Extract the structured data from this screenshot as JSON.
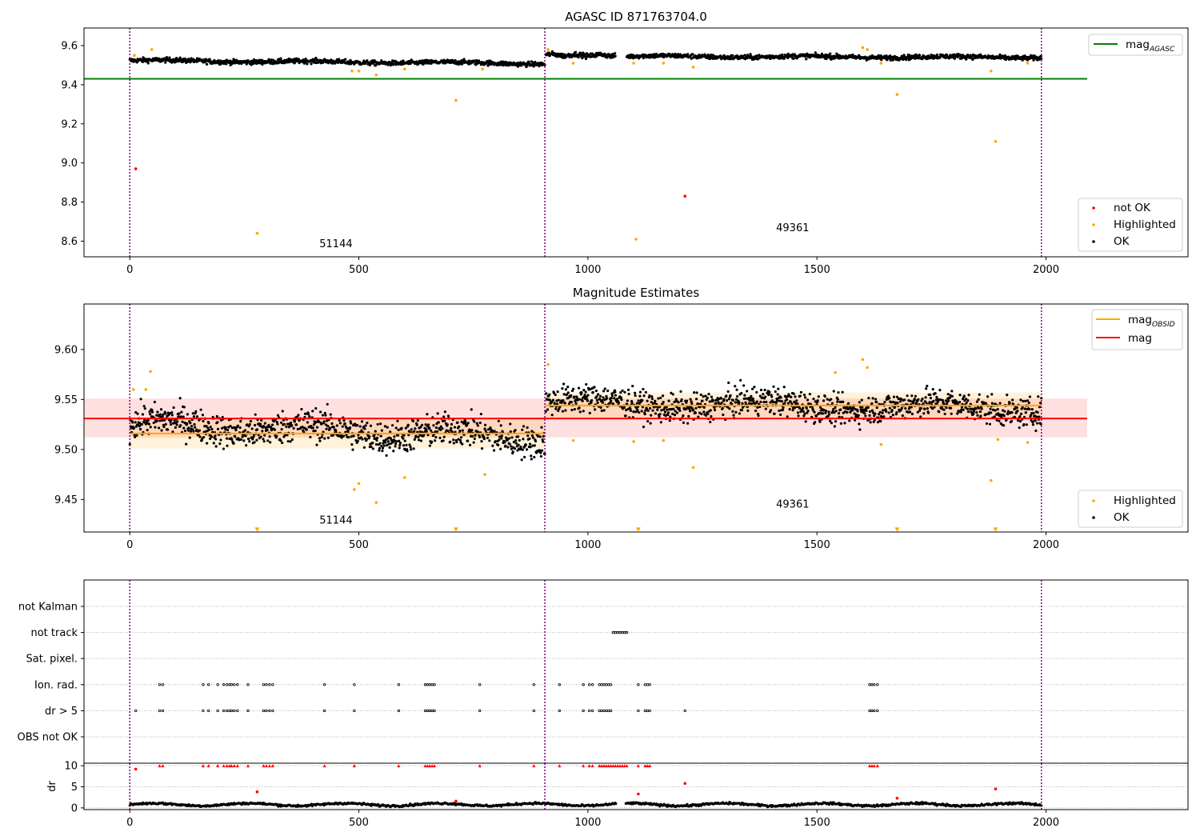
{
  "chart_data": [
    {
      "type": "scatter",
      "title": "AGASC ID 871763704.0",
      "xlim": [
        -100,
        2310
      ],
      "ylim": [
        8.52,
        9.69
      ],
      "xticks": [
        0,
        500,
        1000,
        1500,
        2000
      ],
      "yticks": [
        8.6,
        8.8,
        9.0,
        9.2,
        9.4,
        9.6
      ],
      "ytick_decimals": 1,
      "obs_boundaries": [
        0,
        906,
        1990
      ],
      "obs_labels": [
        {
          "text": "51144",
          "x": 450,
          "y": 8.57
        },
        {
          "text": "49361",
          "x": 1447,
          "y": 8.65
        }
      ],
      "legend_top": {
        "position": "upper right",
        "entries": [
          {
            "label": "mag",
            "sub": "AGASC",
            "color": "#008000"
          }
        ]
      },
      "legend_bottom": {
        "position": "lower right",
        "entries": [
          {
            "label": "not OK",
            "color": "#ff0000"
          },
          {
            "label": "Highlighted",
            "color": "#ffa500"
          },
          {
            "label": "OK",
            "color": "#000000"
          }
        ]
      },
      "lines": [
        {
          "name": "mag_AGASC",
          "y": 9.43,
          "x": [
            -100,
            2090
          ],
          "color": "#008000"
        }
      ],
      "ok_segments": [
        {
          "x_start": 0,
          "x_end": 906,
          "base": 9.512,
          "start": 9.535,
          "end": 9.505,
          "noise": 0.012,
          "count": 900
        },
        {
          "x_start": 908,
          "x_end": 1060,
          "base": 9.55,
          "start": 9.555,
          "end": 9.55,
          "noise": 0.012,
          "count": 150
        },
        {
          "x_start": 1085,
          "x_end": 1990,
          "base": 9.545,
          "start": 9.545,
          "end": 9.535,
          "noise": 0.012,
          "count": 900
        }
      ],
      "highlighted": [
        [
          10,
          9.55
        ],
        [
          48,
          9.58
        ],
        [
          278,
          8.64
        ],
        [
          485,
          9.47
        ],
        [
          500,
          9.47
        ],
        [
          538,
          9.45
        ],
        [
          600,
          9.48
        ],
        [
          712,
          9.32
        ],
        [
          770,
          9.48
        ],
        [
          913,
          9.58
        ],
        [
          968,
          9.51
        ],
        [
          1105,
          8.61
        ],
        [
          1165,
          9.51
        ],
        [
          1230,
          9.49
        ],
        [
          1600,
          9.59
        ],
        [
          1610,
          9.58
        ],
        [
          1640,
          9.51
        ],
        [
          1675,
          9.35
        ],
        [
          1880,
          9.47
        ],
        [
          1890,
          9.11
        ],
        [
          1960,
          9.51
        ],
        [
          1100,
          9.51
        ]
      ],
      "not_ok": [
        [
          13,
          8.97
        ],
        [
          1212,
          8.83
        ]
      ]
    },
    {
      "type": "scatter",
      "title": "Magnitude Estimates",
      "xlim": [
        -100,
        2310
      ],
      "ylim": [
        9.4175,
        9.6455
      ],
      "xticks": [
        0,
        500,
        1000,
        1500,
        2000
      ],
      "yticks": [
        9.45,
        9.5,
        9.55,
        9.6
      ],
      "ytick_decimals": 2,
      "obs_boundaries": [
        0,
        906,
        1990
      ],
      "obs_labels": [
        {
          "text": "51144",
          "x": 450,
          "y": 9.426
        },
        {
          "text": "49361",
          "x": 1447,
          "y": 9.442
        }
      ],
      "legend_top": {
        "position": "upper right",
        "entries": [
          {
            "label": "mag",
            "sub": "OBSID",
            "color": "#ffa500"
          },
          {
            "label": "mag",
            "color": "#ff0000"
          }
        ]
      },
      "legend_bottom": {
        "position": "lower right",
        "entries": [
          {
            "label": "Highlighted",
            "color": "#ffa500"
          },
          {
            "label": "OK",
            "color": "#000000"
          }
        ]
      },
      "bands": [
        {
          "x": [
            -100,
            2090
          ],
          "y_low": 9.512,
          "y_high": 9.551,
          "color": "#ff0000",
          "opacity": 0.12
        },
        {
          "x": [
            0,
            906
          ],
          "y_low": 9.501,
          "y_high": 9.531,
          "color": "#ffa500",
          "opacity": 0.15
        },
        {
          "x": [
            906,
            1990
          ],
          "y_low": 9.531,
          "y_high": 9.557,
          "color": "#ffa500",
          "opacity": 0.15
        }
      ],
      "lines": [
        {
          "name": "mag",
          "y": 9.531,
          "x": [
            -100,
            2090
          ],
          "color": "#ff0000"
        },
        {
          "name": "mag_OBSID 51144",
          "y": 9.516,
          "x": [
            0,
            906
          ],
          "color": "#ffa500"
        },
        {
          "name": "mag_OBSID 49361",
          "y": 9.544,
          "x": [
            906,
            1990
          ],
          "color": "#ffa500"
        }
      ],
      "ok_segments": [
        {
          "x_start": 0,
          "x_end": 906,
          "base": 9.516,
          "start": 9.535,
          "end": 9.508,
          "noise": 0.016,
          "count": 900
        },
        {
          "x_start": 908,
          "x_end": 1990,
          "base": 9.544,
          "start": 9.55,
          "end": 9.538,
          "noise": 0.014,
          "count": 1080
        }
      ],
      "highlighted": [
        [
          8,
          9.56
        ],
        [
          35,
          9.56
        ],
        [
          45,
          9.578
        ],
        [
          490,
          9.46
        ],
        [
          500,
          9.466
        ],
        [
          538,
          9.447
        ],
        [
          600,
          9.472
        ],
        [
          775,
          9.475
        ],
        [
          913,
          9.585
        ],
        [
          968,
          9.509
        ],
        [
          1100,
          9.508
        ],
        [
          1165,
          9.509
        ],
        [
          1230,
          9.482
        ],
        [
          1540,
          9.577
        ],
        [
          1600,
          9.59
        ],
        [
          1610,
          9.582
        ],
        [
          1640,
          9.505
        ],
        [
          1880,
          9.469
        ],
        [
          1895,
          9.51
        ],
        [
          1960,
          9.507
        ]
      ],
      "offscale_markers": [
        278,
        712,
        1110,
        1675,
        1890
      ],
      "offscale_y": 9.42
    },
    {
      "type": "scatter",
      "ylabels": [
        "not Kalman",
        "not track",
        "Sat. pixel.",
        "Ion. rad.",
        "dr > 5",
        "OBS not OK"
      ],
      "xlim": [
        -100,
        2310
      ],
      "obs_boundaries": [
        0,
        906,
        1990
      ],
      "flags": {
        "not_track": [
          1055,
          1060,
          1065,
          1070,
          1075,
          1080,
          1085
        ],
        "ion_rad": [
          65,
          72,
          160,
          172,
          192,
          205,
          212,
          218,
          222,
          228,
          235,
          258,
          292,
          298,
          305,
          312,
          425,
          490,
          587,
          645,
          650,
          655,
          660,
          665,
          764,
          882,
          938,
          990,
          1003,
          1010,
          1025,
          1030,
          1035,
          1040,
          1045,
          1050,
          1110,
          1125,
          1130,
          1135,
          1615,
          1620,
          1625,
          1632
        ],
        "dr_gt_5": [
          13,
          65,
          72,
          160,
          172,
          192,
          205,
          212,
          218,
          222,
          228,
          235,
          258,
          292,
          298,
          305,
          312,
          425,
          490,
          587,
          645,
          650,
          655,
          660,
          665,
          764,
          882,
          938,
          990,
          1003,
          1010,
          1025,
          1030,
          1035,
          1040,
          1045,
          1050,
          1110,
          1125,
          1130,
          1135,
          1212,
          1615,
          1620,
          1625,
          1632
        ]
      }
    },
    {
      "type": "scatter",
      "ylabel": "dr",
      "xlim": [
        -100,
        2310
      ],
      "ylim": [
        -0.4,
        10.6
      ],
      "xticks": [
        0,
        500,
        1000,
        1500,
        2000
      ],
      "yticks": [
        0,
        5,
        10
      ],
      "ytick_decimals": 0,
      "obs_boundaries": [
        0,
        906,
        1990
      ],
      "capped_value": 10,
      "capped_x": [
        65,
        72,
        160,
        172,
        192,
        205,
        212,
        218,
        222,
        228,
        235,
        258,
        292,
        298,
        305,
        312,
        425,
        490,
        587,
        645,
        650,
        655,
        660,
        665,
        764,
        882,
        938,
        990,
        1003,
        1010,
        1025,
        1030,
        1035,
        1040,
        1045,
        1050,
        1055,
        1060,
        1065,
        1070,
        1075,
        1080,
        1085,
        1110,
        1125,
        1130,
        1135,
        1615,
        1620,
        1625,
        1632
      ],
      "outliers": [
        [
          13,
          9.2
        ],
        [
          278,
          3.8
        ],
        [
          1110,
          3.3
        ],
        [
          1212,
          5.8
        ],
        [
          1675,
          2.3
        ],
        [
          1890,
          4.5
        ],
        [
          712,
          1.6
        ]
      ],
      "series_ok": {
        "x_start": 0,
        "x_end": 1990,
        "base": 0.8,
        "amplitude": 0.5,
        "count": 1100
      }
    }
  ]
}
